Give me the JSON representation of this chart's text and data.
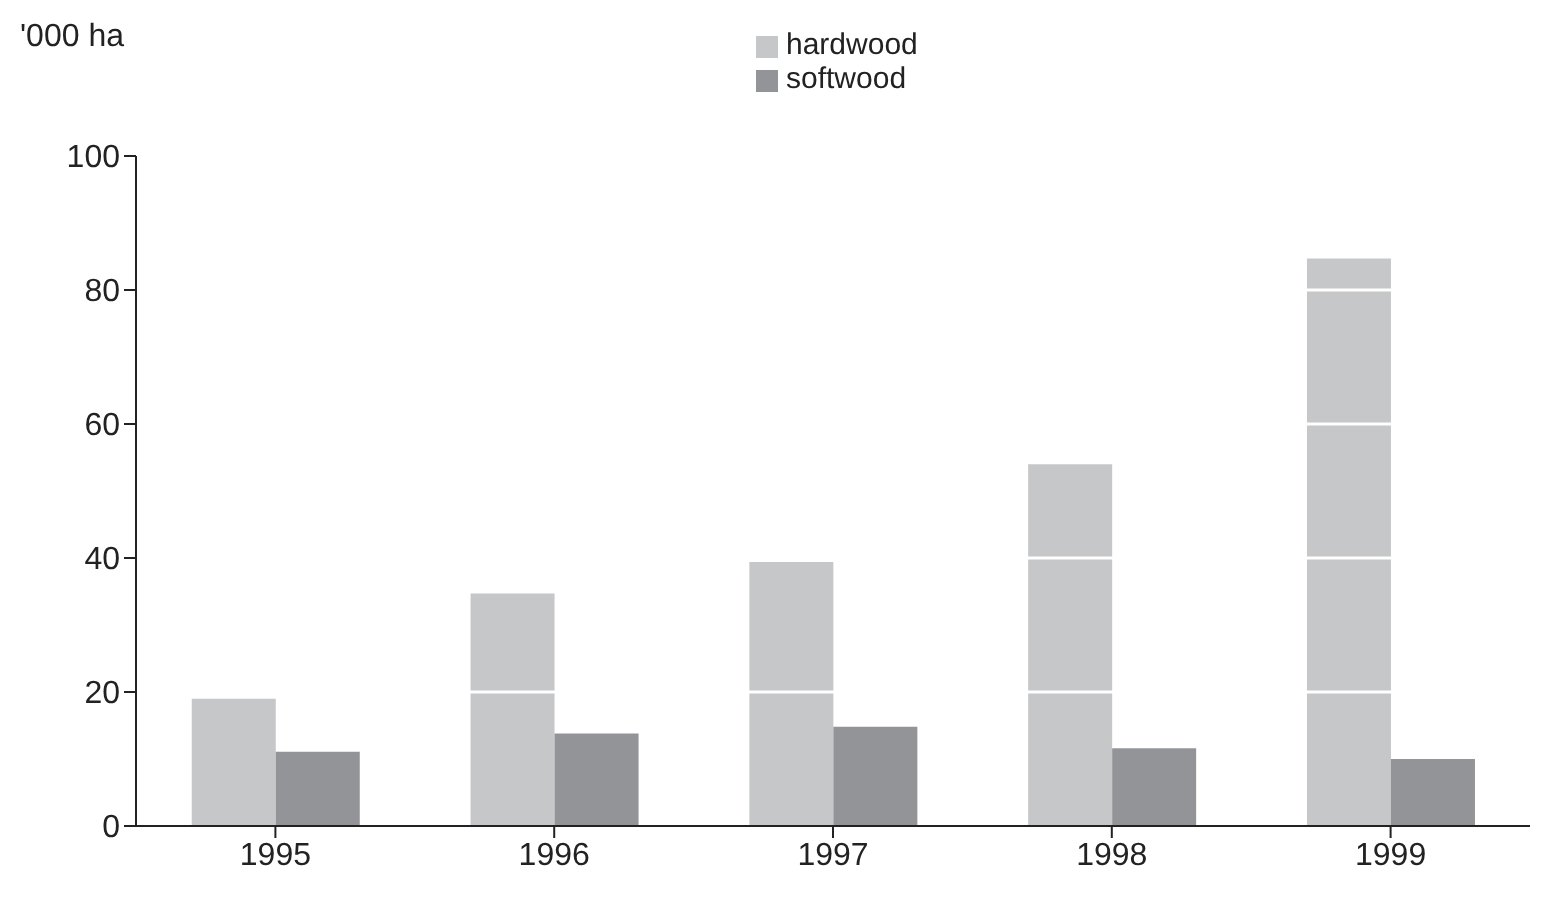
{
  "chart_data": {
    "type": "bar",
    "ylabel": "'000 ha",
    "categories": [
      "1995",
      "1996",
      "1997",
      "1998",
      "1999"
    ],
    "series": [
      {
        "name": "hardwood",
        "color": "#c6c7c9",
        "values": [
          19,
          34.7,
          39.4,
          54,
          84.7
        ]
      },
      {
        "name": "softwood",
        "color": "#939498",
        "values": [
          11.1,
          13.8,
          14.8,
          11.6,
          10
        ]
      }
    ],
    "ylim": [
      0,
      100
    ],
    "yticks": [
      0,
      20,
      40,
      60,
      80,
      100
    ],
    "grid": "y",
    "legend": "top"
  }
}
